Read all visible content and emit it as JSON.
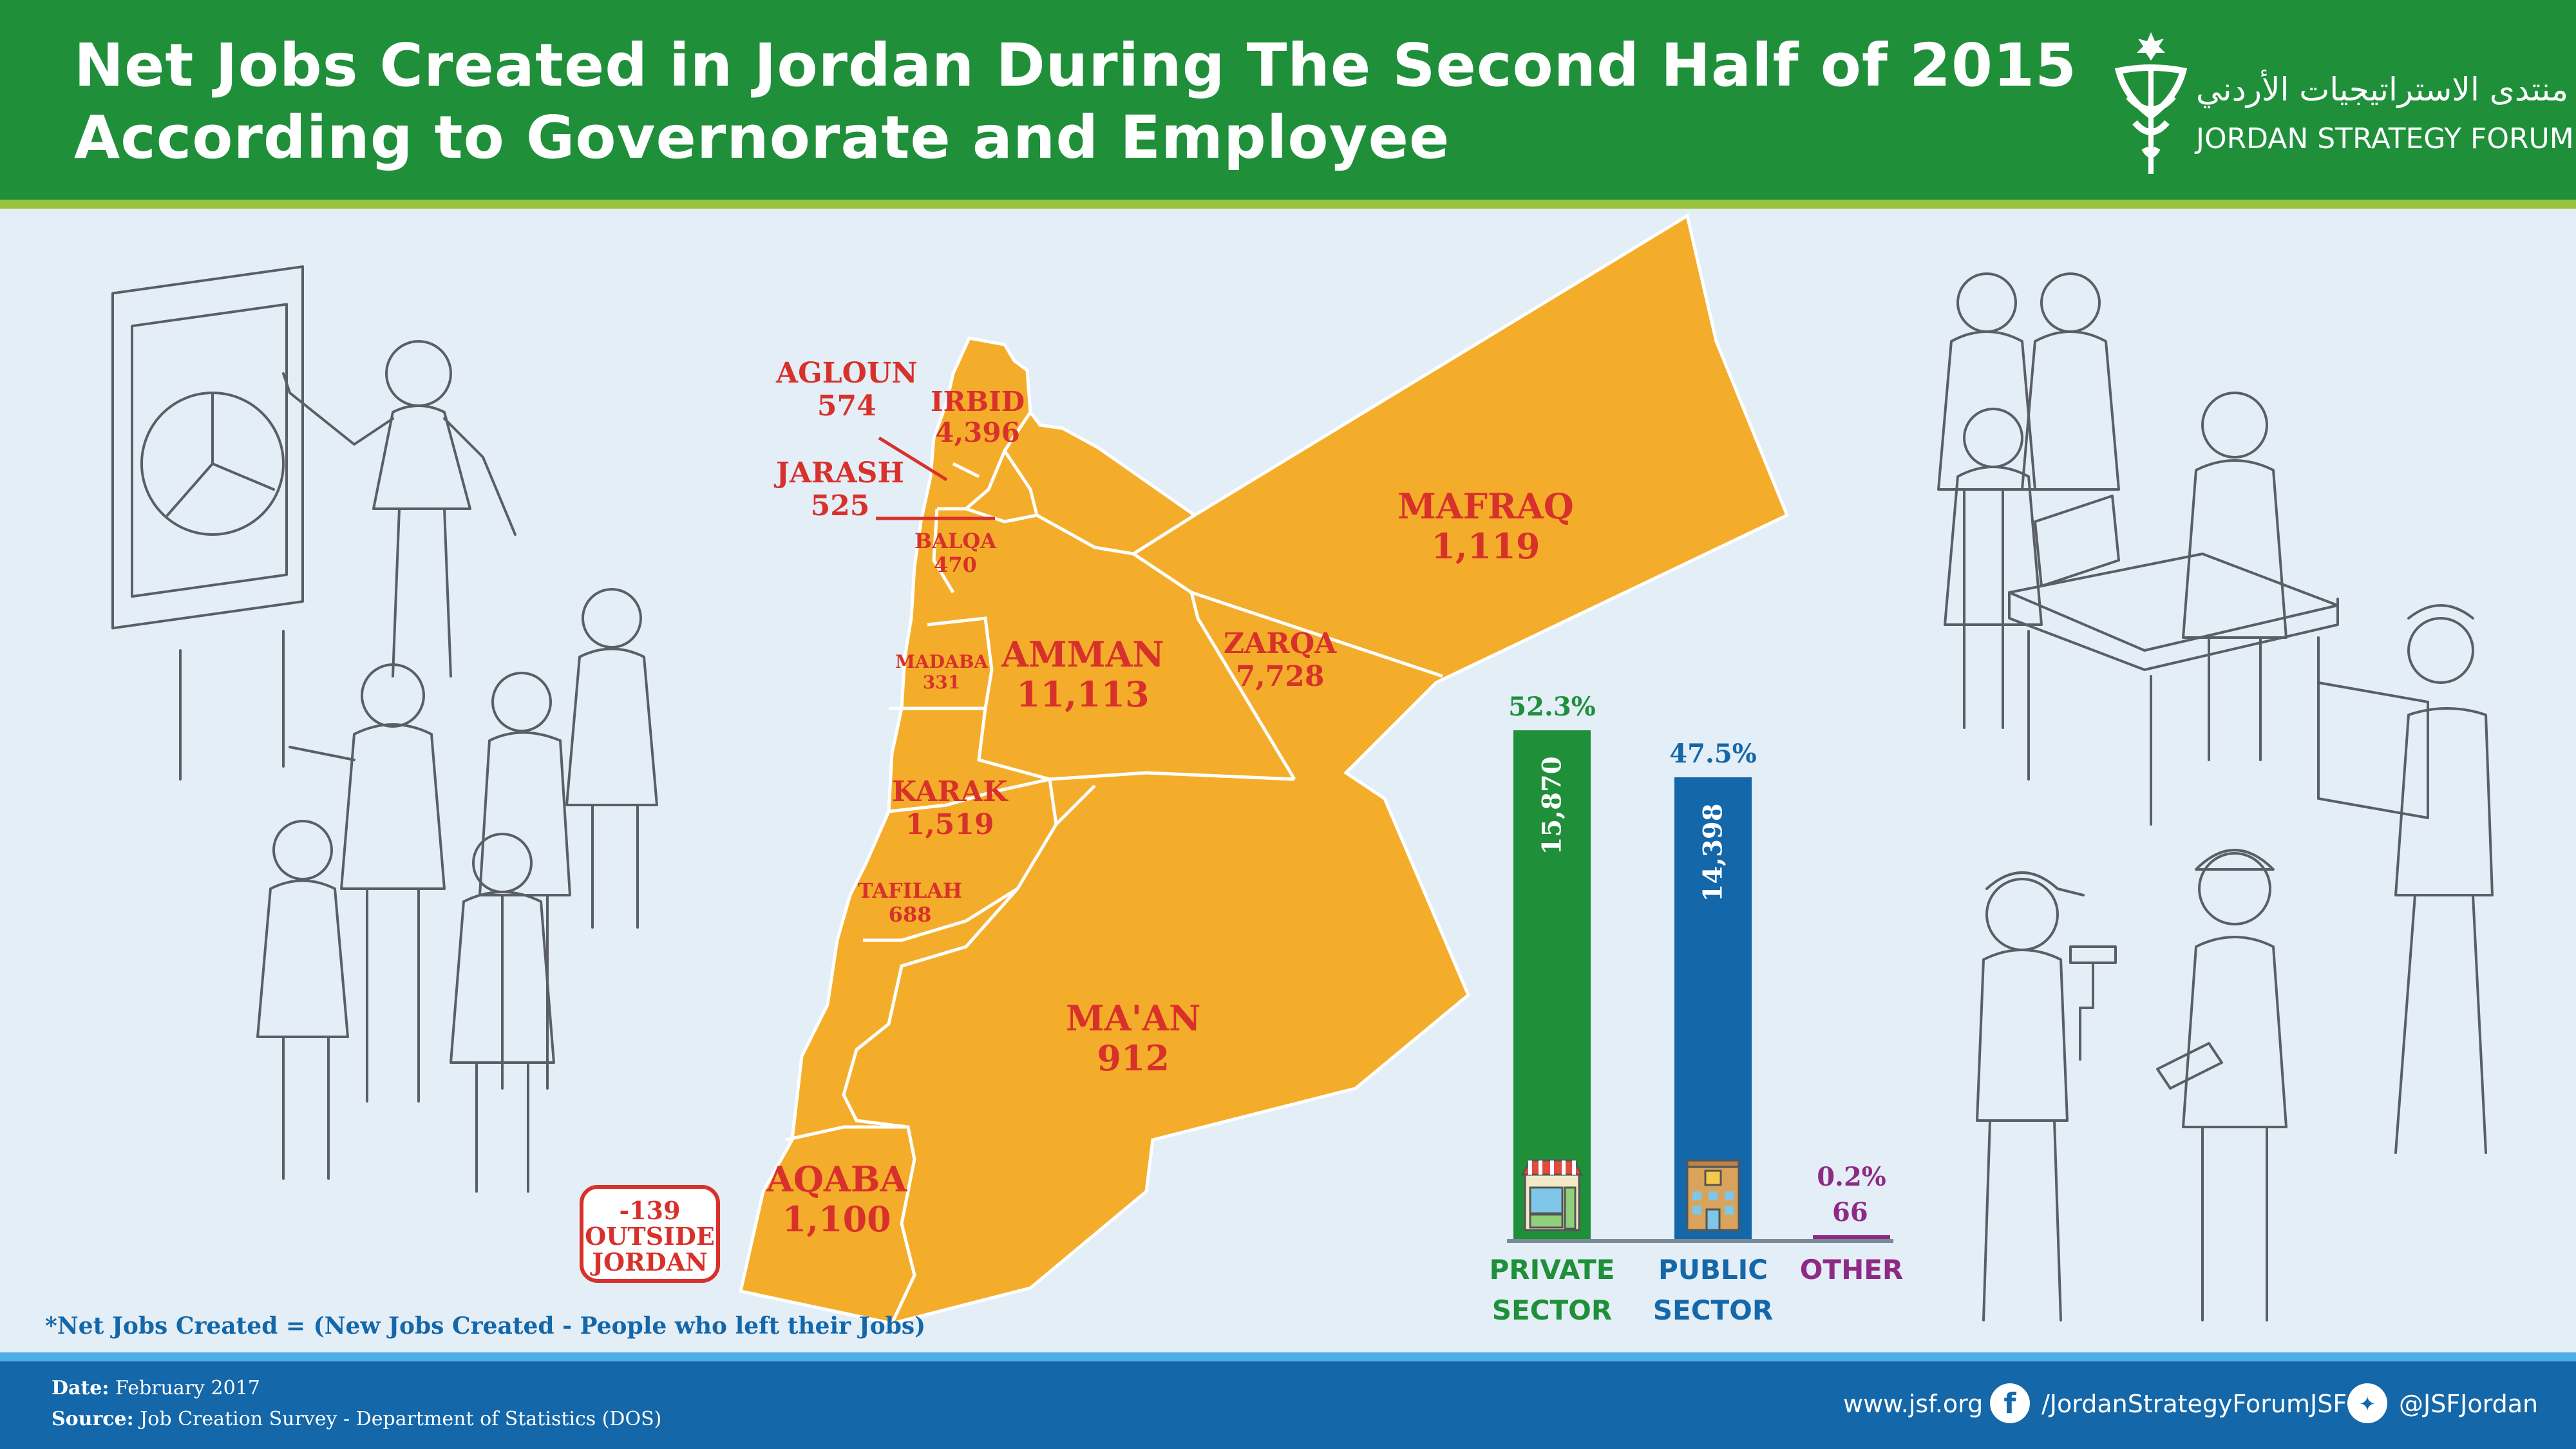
{
  "header": {
    "title_line1": "Net Jobs Created in Jordan During The Second Half of 2015",
    "title_line2": "According to Governorate and Employee",
    "logo_arabic": "منتدى الاستراتيجيات الأردني",
    "logo_english": "JORDAN STRATEGY FORUM"
  },
  "colors": {
    "header_green": "#1f8f3a",
    "map_orange": "#f4ad2b",
    "label_red": "#d8312b",
    "private_green": "#1f8f3a",
    "public_blue": "#1467a9",
    "other_purple": "#8e2a86"
  },
  "governorates": [
    {
      "name": "AGLOUN",
      "value": "574"
    },
    {
      "name": "IRBID",
      "value": "4,396"
    },
    {
      "name": "JARASH",
      "value": "525"
    },
    {
      "name": "BALQA",
      "value": "470"
    },
    {
      "name": "MAFRAQ",
      "value": "1,119"
    },
    {
      "name": "MADABA",
      "value": "331"
    },
    {
      "name": "AMMAN",
      "value": "11,113"
    },
    {
      "name": "ZARQA",
      "value": "7,728"
    },
    {
      "name": "KARAK",
      "value": "1,519"
    },
    {
      "name": "TAFILAH",
      "value": "688"
    },
    {
      "name": "MA'AN",
      "value": "912"
    },
    {
      "name": "AQABA",
      "value": "1,100"
    }
  ],
  "outside": {
    "value": "-139",
    "label_line1": "OUTSIDE",
    "label_line2": "JORDAN"
  },
  "sectors": [
    {
      "line1": "PRIVATE",
      "line2": "SECTOR",
      "value": 15870,
      "value_label": "15,870",
      "percent": "52.3%",
      "icon": "shop-icon"
    },
    {
      "line1": "PUBLIC",
      "line2": "SECTOR",
      "value": 14398,
      "value_label": "14,398",
      "percent": "47.5%",
      "icon": "building-icon"
    },
    {
      "line1": "OTHER",
      "line2": "",
      "value": 66,
      "value_label": "66",
      "percent": "0.2%",
      "icon": ""
    }
  ],
  "footnote": "*Net Jobs Created = (New Jobs Created - People who left their Jobs)",
  "footer": {
    "date_label": "Date:",
    "date_value": "February 2017",
    "source_label": "Source:",
    "source_value": "Job Creation Survey - Department of Statistics (DOS)",
    "website": "www.jsf.org",
    "facebook": "/JordanStrategyForumJSF",
    "twitter": "@JSFJordan"
  }
}
